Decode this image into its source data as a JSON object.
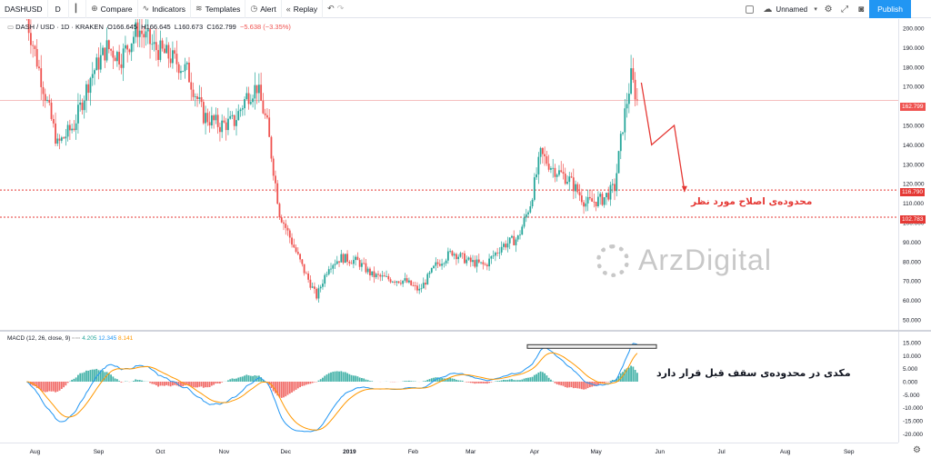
{
  "toolbar": {
    "symbol": "DASHUSD",
    "interval": "D",
    "compare": "Compare",
    "indicators": "Indicators",
    "templates": "Templates",
    "alert": "Alert",
    "replay": "Replay",
    "layout_name": "Unnamed",
    "publish": "Publish",
    "icons": [
      "compare-plus-icon",
      "indicators-icon",
      "templates-icon",
      "alert-clock-icon",
      "replay-icon",
      "undo-icon",
      "redo-icon",
      "cloud-icon",
      "settings-gear-icon",
      "fullscreen-icon",
      "camera-icon"
    ]
  },
  "legend": {
    "symbol_desc": "DASH / USD · 1D · KRAKEN",
    "open": "O166.645",
    "high": "H166.645",
    "low": "L160.673",
    "close": "C162.799",
    "change": "−5.638 (−3.35%)"
  },
  "macd_legend": {
    "title": "MACD (12, 26, close, 9)",
    "hist": "4.205",
    "macd": "12.345",
    "signal": "8.141"
  },
  "price_axis": [
    "200.000",
    "190.000",
    "180.000",
    "170.000",
    "160.000",
    "150.000",
    "140.000",
    "130.000",
    "120.000",
    "110.000",
    "100.000",
    "90.000",
    "80.000",
    "70.000",
    "60.000",
    "50.000"
  ],
  "macd_axis": [
    "15.000",
    "10.000",
    "5.000",
    "0.000",
    "-5.000",
    "-10.000",
    "-15.000",
    "-20.000"
  ],
  "time_axis": [
    "Aug",
    "Sep",
    "Oct",
    "Nov",
    "Dec",
    "2019",
    "Feb",
    "Mar",
    "Apr",
    "May",
    "Jun",
    "Jul",
    "Aug",
    "Sep"
  ],
  "price_tags": [
    {
      "label": "162.799",
      "color": "#ef5350"
    },
    {
      "label": "116.790",
      "color": "#e53935"
    },
    {
      "label": "102.783",
      "color": "#e53935"
    }
  ],
  "annotations": {
    "correction_zone": "محدوده‌ی اصلاح مورد نظر",
    "macd_note": "مکدی در محدوده‌ی سقف قبل قرار دارد"
  },
  "watermark": "ArzDigital",
  "colors": {
    "up": "#26a69a",
    "down": "#ef5350",
    "macd": "#2196f3",
    "signal": "#ff9800",
    "accent": "#2196f3"
  },
  "chart_data": [
    {
      "type": "candlestick",
      "symbol": "DASHUSD",
      "x_ticks": [
        "Aug",
        "Sep",
        "Oct",
        "Nov",
        "Dec",
        "2019",
        "Feb",
        "Mar",
        "Apr",
        "May",
        "Jun",
        "Jul",
        "Aug",
        "Sep"
      ],
      "ylim": [
        45,
        205
      ],
      "close_path": [
        [
          "2018-07-28",
          205
        ],
        [
          "2018-08-05",
          170
        ],
        [
          "2018-08-12",
          140
        ],
        [
          "2018-08-20",
          150
        ],
        [
          "2018-08-28",
          175
        ],
        [
          "2018-09-05",
          190
        ],
        [
          "2018-09-12",
          185
        ],
        [
          "2018-09-20",
          200
        ],
        [
          "2018-09-28",
          190
        ],
        [
          "2018-10-06",
          185
        ],
        [
          "2018-10-14",
          178
        ],
        [
          "2018-10-22",
          155
        ],
        [
          "2018-10-30",
          150
        ],
        [
          "2018-11-06",
          152
        ],
        [
          "2018-11-12",
          165
        ],
        [
          "2018-11-17",
          170
        ],
        [
          "2018-11-22",
          150
        ],
        [
          "2018-11-28",
          105
        ],
        [
          "2018-12-04",
          90
        ],
        [
          "2018-12-10",
          75
        ],
        [
          "2018-12-16",
          62
        ],
        [
          "2018-12-22",
          78
        ],
        [
          "2018-12-28",
          82
        ],
        [
          "2019-01-05",
          80
        ],
        [
          "2019-01-12",
          73
        ],
        [
          "2019-01-20",
          71
        ],
        [
          "2019-01-28",
          70
        ],
        [
          "2019-02-04",
          65
        ],
        [
          "2019-02-12",
          78
        ],
        [
          "2019-02-20",
          85
        ],
        [
          "2019-02-28",
          80
        ],
        [
          "2019-03-08",
          78
        ],
        [
          "2019-03-16",
          88
        ],
        [
          "2019-03-24",
          92
        ],
        [
          "2019-03-30",
          110
        ],
        [
          "2019-04-04",
          135
        ],
        [
          "2019-04-10",
          128
        ],
        [
          "2019-04-18",
          122
        ],
        [
          "2019-04-26",
          110
        ],
        [
          "2019-05-04",
          112
        ],
        [
          "2019-05-10",
          118
        ],
        [
          "2019-05-14",
          150
        ],
        [
          "2019-05-18",
          175
        ],
        [
          "2019-05-21",
          162.8
        ]
      ],
      "horizontal_lines": [
        162.799,
        116.79,
        102.783
      ],
      "projection_path": [
        [
          "2019-05-23",
          172
        ],
        [
          "2019-05-28",
          140
        ],
        [
          "2019-06-08",
          150
        ],
        [
          "2019-06-13",
          116
        ]
      ]
    },
    {
      "type": "macd",
      "params": "12, 26, close, 9",
      "ylim": [
        -24,
        15
      ],
      "macd_last": 12.345,
      "signal_last": 8.141,
      "hist_last": 4.205,
      "reference_level": 13.5
    }
  ]
}
